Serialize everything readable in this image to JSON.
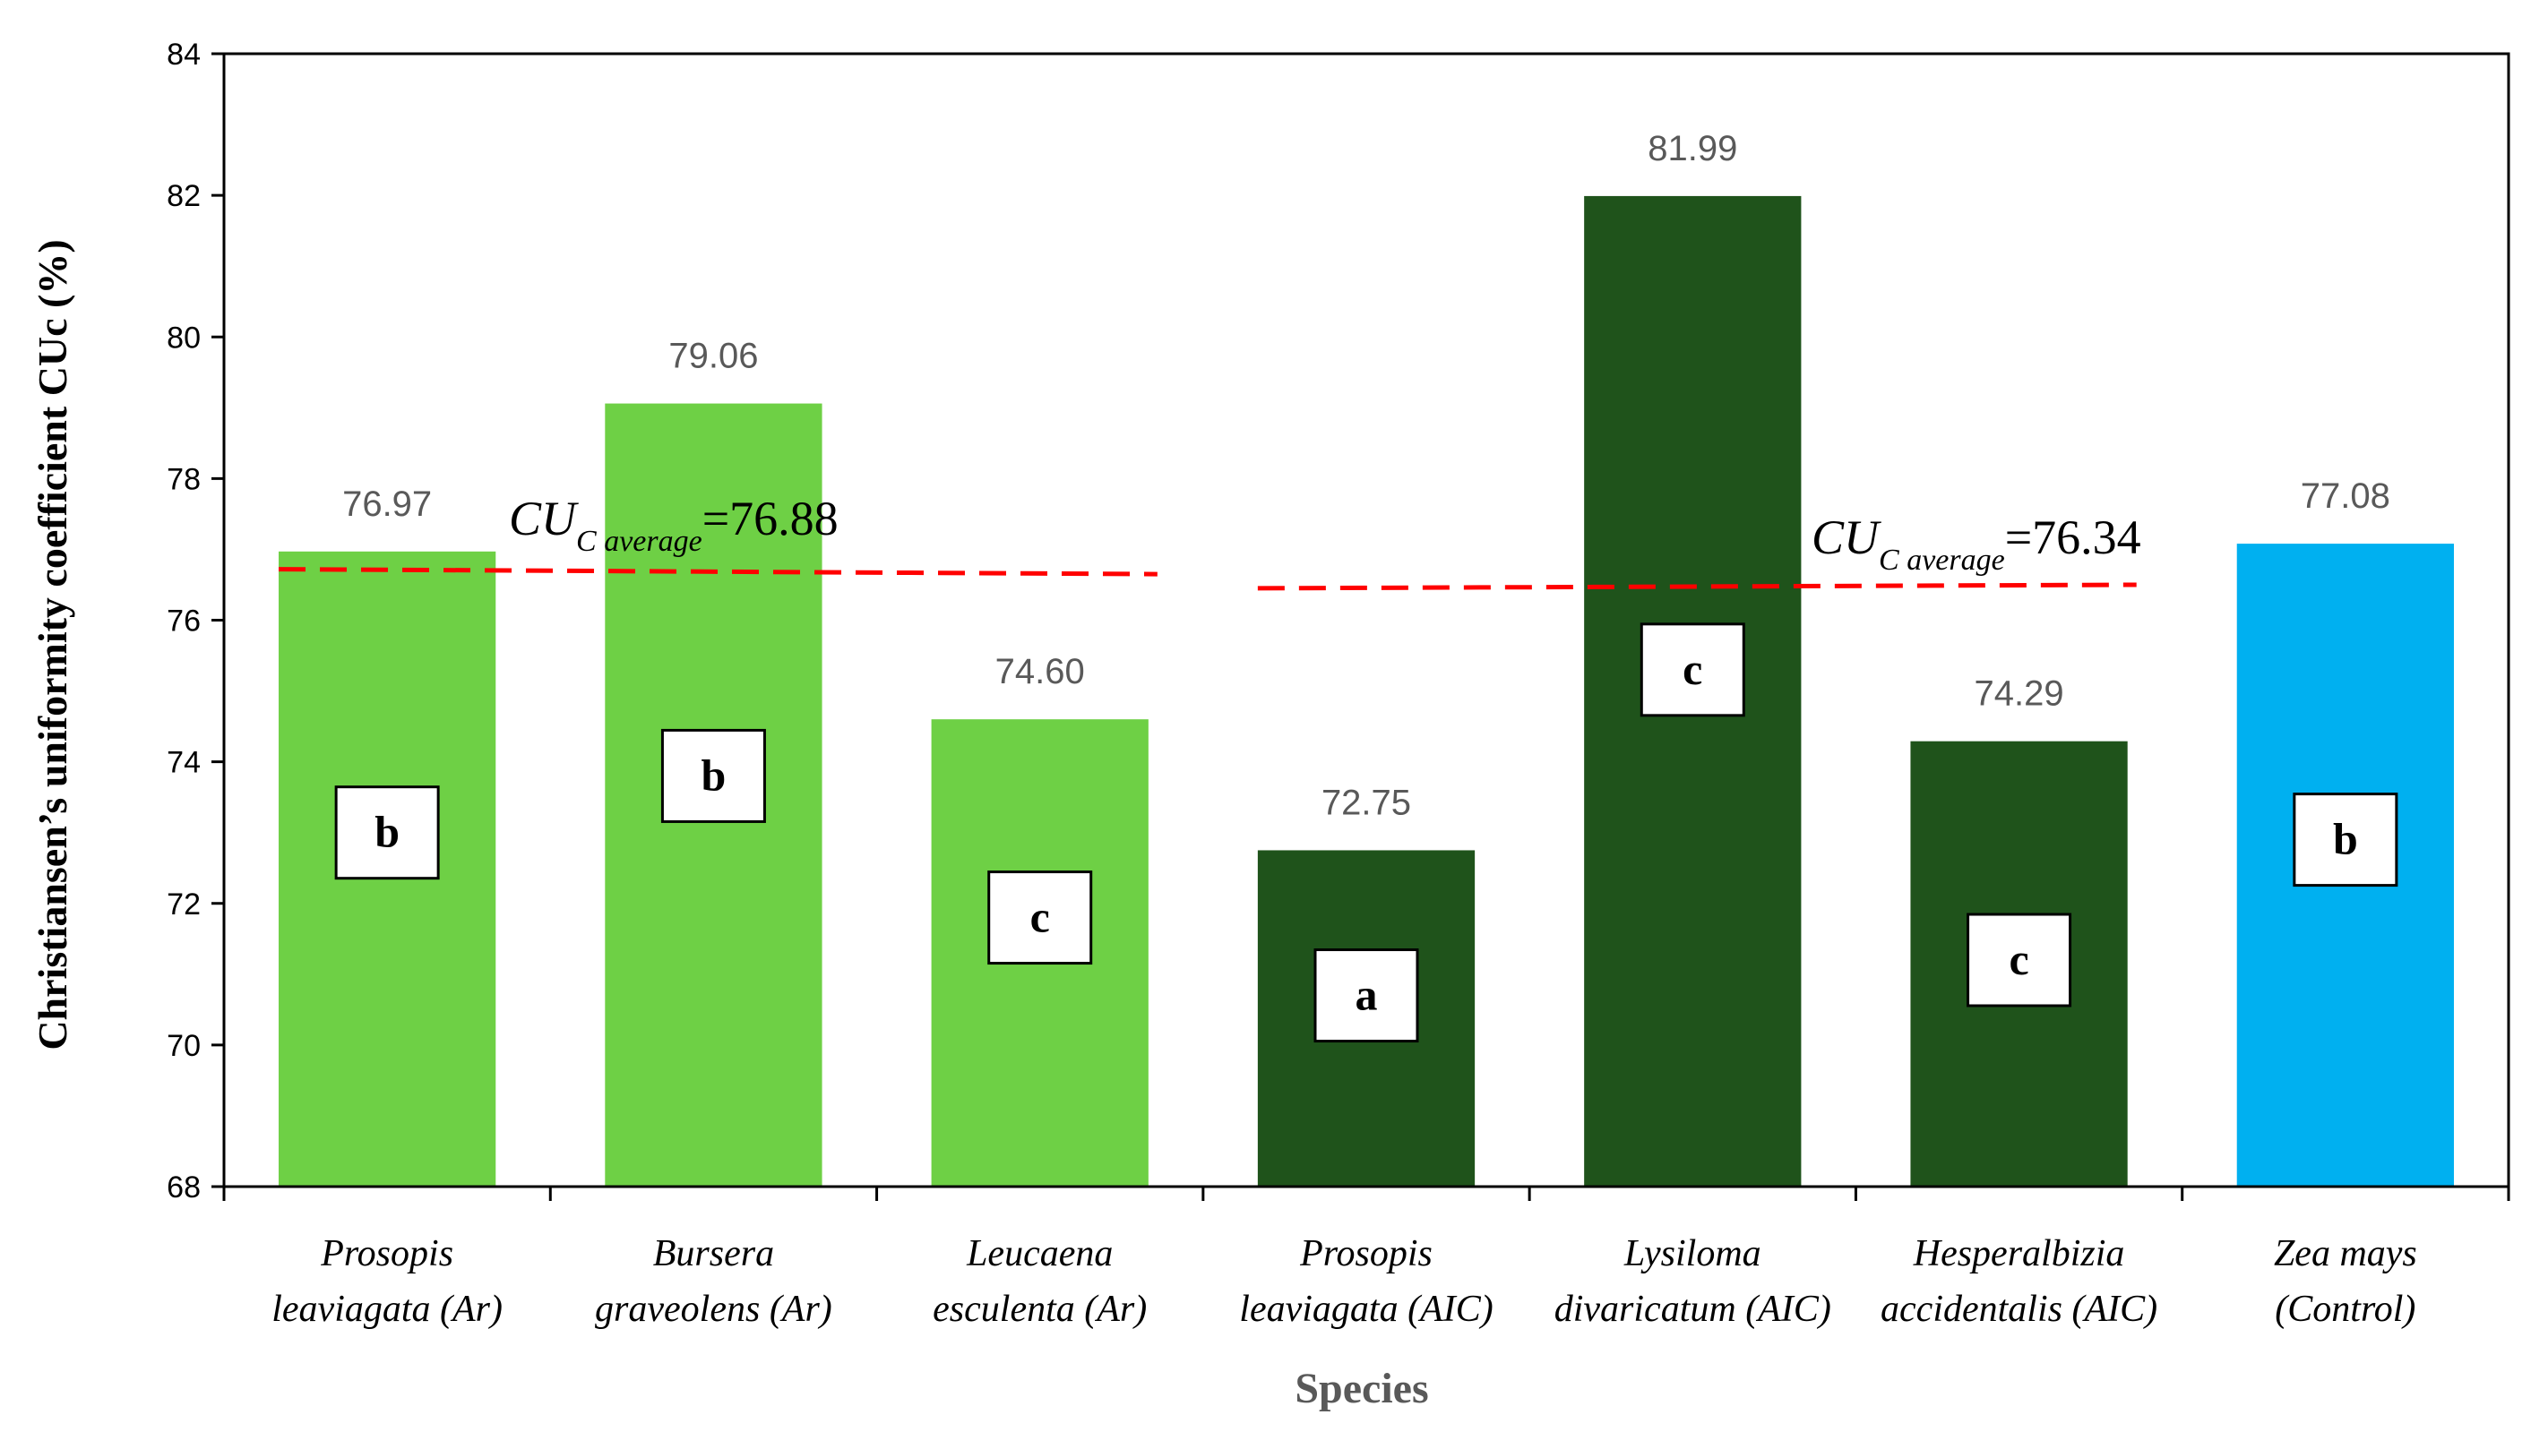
{
  "chart_data": {
    "type": "bar",
    "title": "",
    "xlabel": "Species",
    "ylabel": "Christiansen’s uniformity coefficient CUc (%)",
    "ylim": [
      68,
      84
    ],
    "yticks": [
      68,
      70,
      72,
      74,
      76,
      78,
      80,
      82,
      84
    ],
    "grid": false,
    "categories": [
      {
        "line1": "Prosopis",
        "line2": "leaviagata (Ar)"
      },
      {
        "line1": "Bursera",
        "line2": "graveolens  (Ar)"
      },
      {
        "line1": "Leucaena",
        "line2": "esculenta (Ar)"
      },
      {
        "line1": "Prosopis",
        "line2": "leaviagata (AIC)"
      },
      {
        "line1": "Lysiloma",
        "line2": "divaricatum (AIC)"
      },
      {
        "line1": "Hesperalbizia",
        "line2": "accidentalis (AIC)"
      },
      {
        "line1": "Zea mays",
        "line2": "(Control)"
      }
    ],
    "values": [
      76.97,
      79.06,
      74.6,
      72.75,
      81.99,
      74.29,
      77.08
    ],
    "value_labels": [
      "76.97",
      "79.06",
      "74.60",
      "72.75",
      "81.99",
      "74.29",
      "77.08"
    ],
    "letters": [
      "b",
      "b",
      "c",
      "a",
      "c",
      "c",
      "b"
    ],
    "letter_levels": [
      73.0,
      73.8,
      71.8,
      70.7,
      75.3,
      71.2,
      72.9
    ],
    "colors": [
      "#6ED045",
      "#6ED045",
      "#6ED045",
      "#1F531B",
      "#1F531B",
      "#1F531B",
      "#00B0F0"
    ],
    "averages": [
      {
        "label": "CU",
        "sub": "C average",
        "value_text": "=76.88",
        "value": 76.88,
        "y_start": 76.72,
        "y_end": 76.65,
        "from_index": 0,
        "to_index": 2,
        "line_color": "#FF0000"
      },
      {
        "label": "CU",
        "sub": "C average",
        "value_text": "=76.34",
        "value": 76.34,
        "y_start": 76.45,
        "y_end": 76.5,
        "from_index": 3,
        "to_index": 5,
        "line_color": "#FF0000"
      }
    ]
  }
}
